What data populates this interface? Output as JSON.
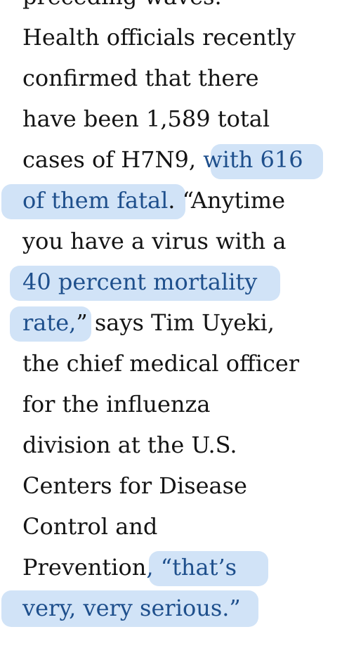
{
  "article": {
    "lines": [
      [
        {
          "text": "preceding waves.",
          "highlight": false
        }
      ],
      [
        {
          "text": "Health officials recently",
          "highlight": false
        }
      ],
      [
        {
          "text": "confirmed that there",
          "highlight": false
        }
      ],
      [
        {
          "text": "have been 1,589 total",
          "highlight": false
        }
      ],
      [
        {
          "text": "cases of H7N9, ",
          "highlight": false
        },
        {
          "text": "with 616",
          "highlight": true
        }
      ],
      [
        {
          "text": "of them fatal",
          "highlight": true
        },
        {
          "text": ". “Anytime",
          "highlight": false
        }
      ],
      [
        {
          "text": "you have a virus with a",
          "highlight": false
        }
      ],
      [
        {
          "text": "40 percent mortality",
          "highlight": true
        }
      ],
      [
        {
          "text": "rate,",
          "highlight": true
        },
        {
          "text": "” says Tim Uyeki,",
          "highlight": false
        }
      ],
      [
        {
          "text": "the chief medical officer",
          "highlight": false
        }
      ],
      [
        {
          "text": "for the influenza",
          "highlight": false
        }
      ],
      [
        {
          "text": "division at the U.S.",
          "highlight": false
        }
      ],
      [
        {
          "text": "Centers for Disease",
          "highlight": false
        }
      ],
      [
        {
          "text": "Control and",
          "highlight": false
        }
      ],
      [
        {
          "text": "Prevention",
          "highlight": false
        },
        {
          "text": ", “that’s",
          "highlight": true
        }
      ],
      [
        {
          "text": "very, very serious.”",
          "highlight": true
        }
      ]
    ]
  },
  "colors": {
    "text": "#141414",
    "highlight_text": "#1e4f8c",
    "highlight_marker": "#cfe2f7",
    "background": "#ffffff"
  }
}
